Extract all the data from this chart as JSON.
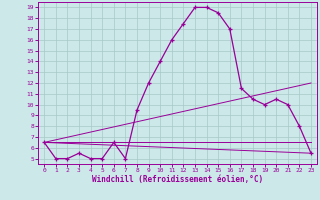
{
  "bg_color": "#cce8e8",
  "line_color": "#990099",
  "grid_color": "#a8c8c8",
  "xlabel": "Windchill (Refroidissement éolien,°C)",
  "xlim": [
    -0.5,
    23.5
  ],
  "ylim": [
    4.5,
    19.5
  ],
  "xticks": [
    0,
    1,
    2,
    3,
    4,
    5,
    6,
    7,
    8,
    9,
    10,
    11,
    12,
    13,
    14,
    15,
    16,
    17,
    18,
    19,
    20,
    21,
    22,
    23
  ],
  "yticks": [
    5,
    6,
    7,
    8,
    9,
    10,
    11,
    12,
    13,
    14,
    15,
    16,
    17,
    18,
    19
  ],
  "curve1_x": [
    0,
    1,
    2,
    3,
    4,
    5,
    6,
    7,
    8,
    9,
    10,
    11,
    12,
    13,
    14,
    15,
    16,
    17,
    18,
    19,
    20,
    21,
    22,
    23
  ],
  "curve1_y": [
    6.5,
    5.0,
    5.0,
    5.5,
    5.0,
    5.0,
    6.5,
    5.0,
    9.5,
    12.0,
    14.0,
    16.0,
    17.5,
    19.0,
    19.0,
    18.5,
    17.0,
    11.5,
    10.5,
    10.0,
    10.5,
    10.0,
    8.0,
    5.5
  ],
  "line1_x": [
    0,
    23
  ],
  "line1_y": [
    6.5,
    5.5
  ],
  "line2_x": [
    0,
    23
  ],
  "line2_y": [
    6.5,
    6.5
  ],
  "line3_x": [
    0,
    23
  ],
  "line3_y": [
    6.5,
    12.0
  ]
}
